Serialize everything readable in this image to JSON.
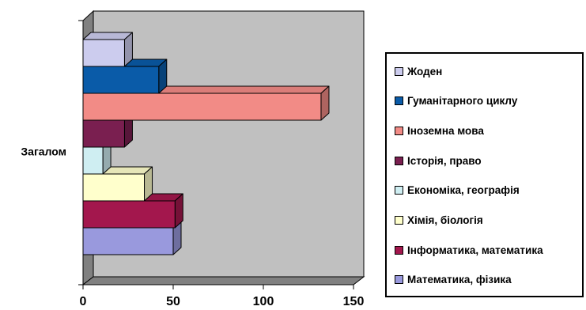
{
  "chart_data": {
    "type": "bar",
    "orientation": "horizontal",
    "style": "3d",
    "categories": [
      "Загалом"
    ],
    "xlim": [
      0,
      150
    ],
    "x_ticks": [
      0,
      50,
      100,
      150
    ],
    "legend_position": "right",
    "grid": false,
    "series": [
      {
        "name": "Жоден",
        "values": [
          23
        ],
        "color": "#CCCCEE"
      },
      {
        "name": "Гуманітарного циклу",
        "values": [
          42
        ],
        "color": "#0A5BA8"
      },
      {
        "name": "Іноземна мова",
        "values": [
          132
        ],
        "color": "#F28B86"
      },
      {
        "name": "Історія, право",
        "values": [
          23
        ],
        "color": "#7A1F50"
      },
      {
        "name": "Економіка, географія",
        "values": [
          11
        ],
        "color": "#CFEEF2"
      },
      {
        "name": "Хімія, біологія",
        "values": [
          34
        ],
        "color": "#FFFFCC"
      },
      {
        "name": "Інформатика, математика",
        "values": [
          51
        ],
        "color": "#A3174D"
      },
      {
        "name": "Математика, фізика",
        "values": [
          50
        ],
        "color": "#9999DD"
      }
    ]
  }
}
